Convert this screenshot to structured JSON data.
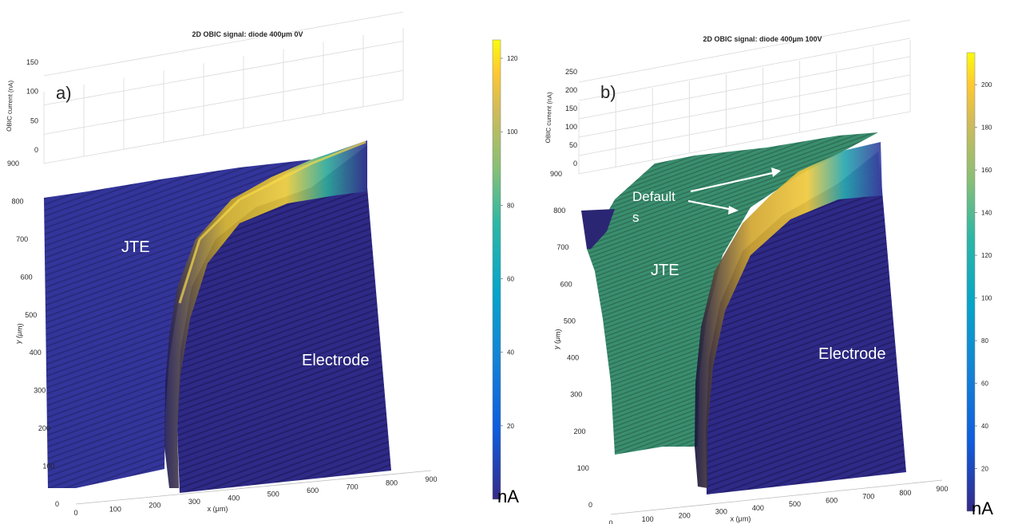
{
  "chart_data": [
    {
      "type": "surface",
      "panel_label": "a)",
      "title": "2D OBIC signal: diode 400μm 0V",
      "xlabel": "x (μm)",
      "ylabel": "y (μm)",
      "zlabel": "OBIC current (nA)",
      "x_ticks": [
        0,
        100,
        200,
        300,
        400,
        500,
        600,
        700,
        800,
        900
      ],
      "y_ticks": [
        0,
        100,
        200,
        300,
        400,
        500,
        600,
        700,
        800,
        900
      ],
      "z_ticks": [
        0,
        50,
        100,
        150
      ],
      "xlim": [
        0,
        900
      ],
      "ylim": [
        0,
        900
      ],
      "zlim": [
        0,
        150
      ],
      "colorbar": {
        "ticks": [
          20,
          40,
          60,
          80,
          100,
          120
        ],
        "range": [
          0,
          125
        ],
        "unit": "nA"
      },
      "regions": [
        {
          "label": "JTE",
          "level_nA": 8
        },
        {
          "label": "Electrode",
          "level_nA": 5
        }
      ],
      "peak_nA": 125,
      "annotations": []
    },
    {
      "type": "surface",
      "panel_label": "b)",
      "title": "2D OBIC signal: diode 400μm 100V",
      "xlabel": "x (μm)",
      "ylabel": "y (μm)",
      "zlabel": "OBIC current (nA)",
      "x_ticks": [
        0,
        100,
        200,
        300,
        400,
        500,
        600,
        700,
        800,
        900
      ],
      "y_ticks": [
        0,
        100,
        200,
        300,
        400,
        500,
        600,
        700,
        800,
        900
      ],
      "z_ticks": [
        0,
        50,
        100,
        150,
        200,
        250
      ],
      "xlim": [
        0,
        900
      ],
      "ylim": [
        0,
        900
      ],
      "zlim": [
        0,
        250
      ],
      "colorbar": {
        "ticks": [
          20,
          40,
          60,
          80,
          100,
          120,
          140,
          160,
          180,
          200
        ],
        "range": [
          0,
          215
        ],
        "unit": "nA"
      },
      "regions": [
        {
          "label": "JTE",
          "level_nA": 130
        },
        {
          "label": "Electrode",
          "level_nA": 5
        }
      ],
      "peak_nA": 215,
      "annotations": [
        {
          "text": "Default",
          "text2": "s"
        }
      ]
    }
  ],
  "colors": {
    "parula_low": "#352a87",
    "parula_mid": "#1fb8b2",
    "parula_high": "#f9fb0e",
    "text": "#262626",
    "grid": "#d9d9d9"
  }
}
